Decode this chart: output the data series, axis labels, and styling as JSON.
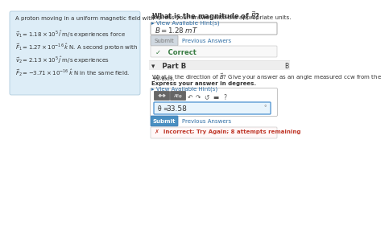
{
  "bg_left": "#ddedf7",
  "bg_white": "#ffffff",
  "bg_page": "#ffffff",
  "bg_submit": "#4a8fc1",
  "bg_submit_disabled": "#d0d8e0",
  "bg_correct": "#f8f8f8",
  "bg_partb_header": "#eeeeee",
  "bg_toolbar": "#f5f5f5",
  "bg_input_theta": "#e8f4fc",
  "bg_incorrect": "#fff8f8",
  "text_dark": "#333333",
  "text_link": "#2e6da4",
  "text_green": "#3a7d44",
  "text_red": "#c0392b",
  "text_white": "#ffffff",
  "text_gray": "#777777",
  "border_light": "#cccccc",
  "border_blue": "#5b9bd5",
  "left_lines": [
    "A proton moving in a uniform magnetic field with",
    "$\\vec{v}_1 = 1.18 \\times 10^5\\,\\hat{i}$ m/s experiences force",
    "$\\vec{F}_1 = 1.27 \\times 10^{-16}\\,\\hat{k}$ N. A second proton with",
    "$\\vec{v}_2 = 2.13 \\times 10^5\\,\\hat{j}$ m/s experiences",
    "$\\vec{F}_2 = -3.71 \\times 10^{-16}\\,\\hat{k}$ N in the same field."
  ],
  "q_magnitude": "What is the magnitude of $\\vec{B}$?",
  "express_units": "Express your answer with the appropriate units.",
  "hint": "▸ View Available Hint(s)",
  "b_answer": "$B = 1.28$ mT",
  "submit_label": "Submit",
  "prev_answers": "Previous Answers",
  "correct_label": "✓   Correct",
  "partb_title": "▾   Part B",
  "q_direction_1": "What is the direction of $\\vec{B}$? Give your answer as an angle measured ccw from the",
  "q_direction_2": "+x-axis.",
  "express_degrees": "Express your answer in degrees.",
  "hint2": "▸ View Available Hint(s)",
  "theta_label": "θ =",
  "theta_value": "33.58",
  "degree_symbol": "°",
  "submit2_label": "Submit",
  "prev2": "Previous Answers",
  "incorrect_label": "✗  Incorrect; Try Again; 8 attempts remaining"
}
